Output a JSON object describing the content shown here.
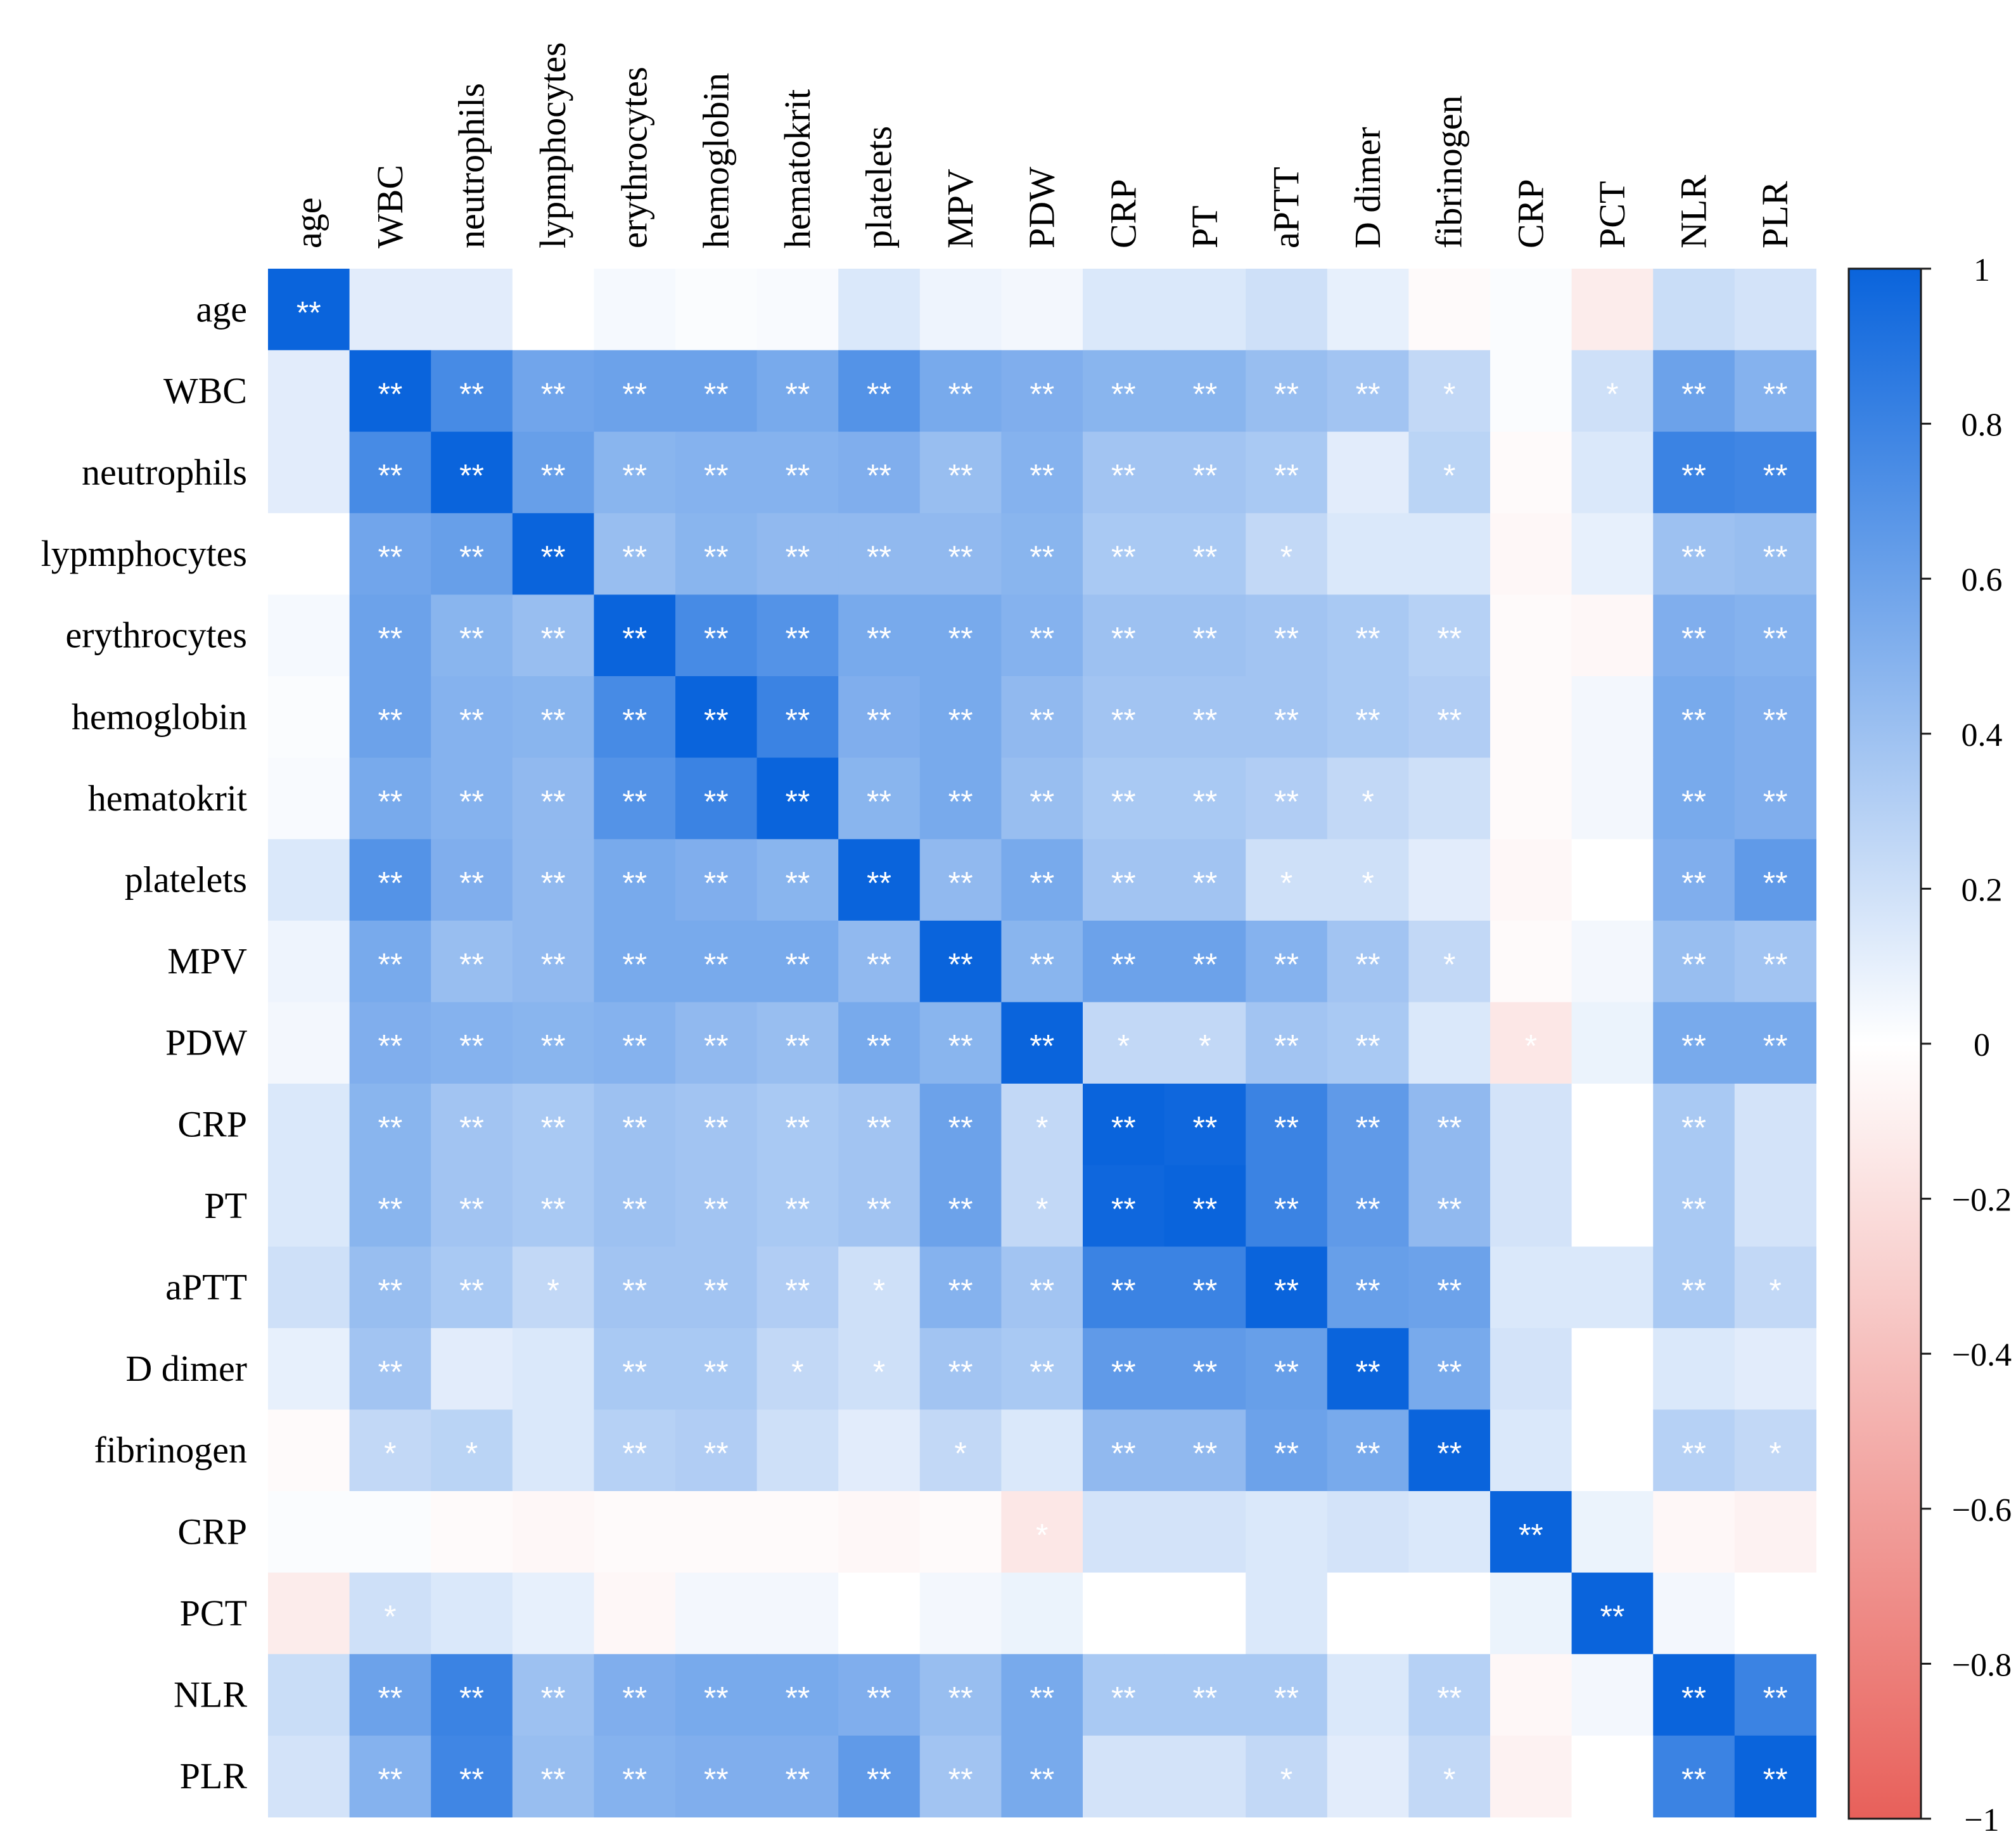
{
  "chart_data": {
    "type": "heatmap",
    "title": "",
    "variables": [
      "age",
      "WBC",
      "neutrophils",
      "lypmphocytes",
      "erythrocytes",
      "hemoglobin",
      "hematokrit",
      "platelets",
      "MPV",
      "PDW",
      "CRP",
      "PT",
      "aPTT",
      "D dimer",
      "fibrinogen",
      "CRP",
      "PCT",
      "NLR",
      "PLR"
    ],
    "matrix": [
      [
        1.0,
        0.12,
        0.12,
        0.0,
        0.04,
        0.02,
        0.03,
        0.15,
        0.07,
        0.05,
        0.15,
        0.15,
        0.2,
        0.1,
        -0.03,
        0.02,
        -0.12,
        0.22,
        0.18
      ],
      [
        0.12,
        1.0,
        0.75,
        0.58,
        0.6,
        0.6,
        0.55,
        0.7,
        0.55,
        0.52,
        0.48,
        0.48,
        0.42,
        0.38,
        0.25,
        0.02,
        0.2,
        0.6,
        0.5
      ],
      [
        0.12,
        0.75,
        1.0,
        0.62,
        0.48,
        0.5,
        0.5,
        0.52,
        0.42,
        0.5,
        0.38,
        0.38,
        0.35,
        0.12,
        0.28,
        -0.03,
        0.15,
        0.8,
        0.78
      ],
      [
        0.0,
        0.58,
        0.62,
        1.0,
        0.42,
        0.48,
        0.45,
        0.45,
        0.45,
        0.48,
        0.35,
        0.35,
        0.25,
        0.15,
        0.15,
        -0.05,
        0.1,
        0.4,
        0.42
      ],
      [
        0.04,
        0.6,
        0.48,
        0.42,
        1.0,
        0.75,
        0.7,
        0.55,
        0.55,
        0.5,
        0.4,
        0.4,
        0.38,
        0.35,
        0.3,
        -0.03,
        -0.05,
        0.52,
        0.5
      ],
      [
        0.02,
        0.6,
        0.5,
        0.48,
        0.75,
        1.0,
        0.8,
        0.52,
        0.55,
        0.45,
        0.38,
        0.38,
        0.38,
        0.35,
        0.32,
        -0.03,
        0.05,
        0.55,
        0.52
      ],
      [
        0.03,
        0.55,
        0.5,
        0.45,
        0.7,
        0.8,
        1.0,
        0.48,
        0.55,
        0.42,
        0.35,
        0.35,
        0.32,
        0.25,
        0.2,
        -0.03,
        0.05,
        0.55,
        0.52
      ],
      [
        0.15,
        0.7,
        0.52,
        0.45,
        0.55,
        0.52,
        0.48,
        1.0,
        0.45,
        0.55,
        0.38,
        0.38,
        0.2,
        0.2,
        0.12,
        -0.05,
        0.0,
        0.52,
        0.65
      ],
      [
        0.07,
        0.55,
        0.42,
        0.45,
        0.55,
        0.55,
        0.55,
        0.45,
        1.0,
        0.48,
        0.6,
        0.6,
        0.5,
        0.38,
        0.25,
        -0.03,
        0.05,
        0.42,
        0.38
      ],
      [
        0.05,
        0.52,
        0.5,
        0.48,
        0.5,
        0.45,
        0.42,
        0.55,
        0.48,
        1.0,
        0.25,
        0.25,
        0.38,
        0.35,
        0.15,
        -0.15,
        0.08,
        0.55,
        0.55
      ],
      [
        0.15,
        0.48,
        0.38,
        0.35,
        0.4,
        0.38,
        0.35,
        0.38,
        0.6,
        0.25,
        1.0,
        0.98,
        0.8,
        0.65,
        0.45,
        0.18,
        0.0,
        0.35,
        0.18
      ],
      [
        0.15,
        0.48,
        0.38,
        0.35,
        0.4,
        0.38,
        0.35,
        0.38,
        0.6,
        0.25,
        0.98,
        1.0,
        0.8,
        0.65,
        0.45,
        0.18,
        0.0,
        0.35,
        0.18
      ],
      [
        0.2,
        0.42,
        0.35,
        0.25,
        0.38,
        0.38,
        0.32,
        0.2,
        0.5,
        0.38,
        0.8,
        0.8,
        1.0,
        0.62,
        0.6,
        0.15,
        0.15,
        0.35,
        0.25
      ],
      [
        0.1,
        0.38,
        0.12,
        0.15,
        0.35,
        0.35,
        0.25,
        0.2,
        0.38,
        0.35,
        0.65,
        0.65,
        0.62,
        1.0,
        0.55,
        0.18,
        0.0,
        0.15,
        0.12
      ],
      [
        -0.03,
        0.25,
        0.28,
        0.15,
        0.3,
        0.32,
        0.2,
        0.12,
        0.25,
        0.15,
        0.45,
        0.45,
        0.6,
        0.55,
        1.0,
        0.15,
        0.0,
        0.3,
        0.25
      ],
      [
        0.02,
        0.02,
        -0.03,
        -0.05,
        -0.03,
        -0.03,
        -0.03,
        -0.05,
        -0.03,
        -0.15,
        0.18,
        0.18,
        0.15,
        0.18,
        0.15,
        1.0,
        0.08,
        -0.05,
        -0.08
      ],
      [
        -0.12,
        0.2,
        0.15,
        0.1,
        -0.05,
        0.05,
        0.05,
        0.0,
        0.05,
        0.08,
        0.0,
        0.0,
        0.15,
        0.0,
        0.0,
        0.08,
        1.0,
        0.05,
        0.0
      ],
      [
        0.22,
        0.6,
        0.8,
        0.4,
        0.52,
        0.55,
        0.55,
        0.52,
        0.42,
        0.55,
        0.35,
        0.35,
        0.35,
        0.15,
        0.3,
        -0.05,
        0.05,
        1.0,
        0.8
      ],
      [
        0.18,
        0.5,
        0.78,
        0.42,
        0.5,
        0.52,
        0.52,
        0.65,
        0.38,
        0.55,
        0.18,
        0.18,
        0.25,
        0.12,
        0.25,
        -0.08,
        0.0,
        0.8,
        1.0
      ]
    ],
    "significance": [
      [
        "**",
        "",
        "",
        "",
        "",
        "",
        "",
        "",
        "",
        "",
        "",
        "",
        "",
        "",
        "",
        "",
        "",
        "",
        ""
      ],
      [
        "",
        "**",
        "**",
        "**",
        "**",
        "**",
        "**",
        "**",
        "**",
        "**",
        "**",
        "**",
        "**",
        "**",
        "*",
        "",
        "*",
        "**",
        "**"
      ],
      [
        "",
        "**",
        "**",
        "**",
        "**",
        "**",
        "**",
        "**",
        "**",
        "**",
        "**",
        "**",
        "**",
        "",
        "*",
        "",
        "",
        "**",
        "**"
      ],
      [
        "",
        "**",
        "**",
        "**",
        "**",
        "**",
        "**",
        "**",
        "**",
        "**",
        "**",
        "**",
        "*",
        "",
        "",
        "",
        "",
        "**",
        "**"
      ],
      [
        "",
        "**",
        "**",
        "**",
        "**",
        "**",
        "**",
        "**",
        "**",
        "**",
        "**",
        "**",
        "**",
        "**",
        "**",
        "",
        "",
        "**",
        "**"
      ],
      [
        "",
        "**",
        "**",
        "**",
        "**",
        "**",
        "**",
        "**",
        "**",
        "**",
        "**",
        "**",
        "**",
        "**",
        "**",
        "",
        "",
        "**",
        "**"
      ],
      [
        "",
        "**",
        "**",
        "**",
        "**",
        "**",
        "**",
        "**",
        "**",
        "**",
        "**",
        "**",
        "**",
        "*",
        "",
        "",
        "",
        "**",
        "**"
      ],
      [
        "",
        "**",
        "**",
        "**",
        "**",
        "**",
        "**",
        "**",
        "**",
        "**",
        "**",
        "**",
        "*",
        "*",
        "",
        "",
        "",
        "**",
        "**"
      ],
      [
        "",
        "**",
        "**",
        "**",
        "**",
        "**",
        "**",
        "**",
        "**",
        "**",
        "**",
        "**",
        "**",
        "**",
        "*",
        "",
        "",
        "**",
        "**"
      ],
      [
        "",
        "**",
        "**",
        "**",
        "**",
        "**",
        "**",
        "**",
        "**",
        "**",
        "*",
        "*",
        "**",
        "**",
        "",
        "*",
        "",
        "**",
        "**"
      ],
      [
        "",
        "**",
        "**",
        "**",
        "**",
        "**",
        "**",
        "**",
        "**",
        "*",
        "**",
        "**",
        "**",
        "**",
        "**",
        "",
        "",
        "**",
        ""
      ],
      [
        "",
        "**",
        "**",
        "**",
        "**",
        "**",
        "**",
        "**",
        "**",
        "*",
        "**",
        "**",
        "**",
        "**",
        "**",
        "",
        "",
        "**",
        ""
      ],
      [
        "",
        "**",
        "**",
        "*",
        "**",
        "**",
        "**",
        "*",
        "**",
        "**",
        "**",
        "**",
        "**",
        "**",
        "**",
        "",
        "",
        "**",
        "*"
      ],
      [
        "",
        "**",
        "",
        "",
        "**",
        "**",
        "*",
        "*",
        "**",
        "**",
        "**",
        "**",
        "**",
        "**",
        "**",
        "",
        "",
        "",
        ""
      ],
      [
        "",
        "*",
        "*",
        "",
        "**",
        "**",
        "",
        "",
        "*",
        "",
        "**",
        "**",
        "**",
        "**",
        "**",
        "",
        "",
        "**",
        "*"
      ],
      [
        "",
        "",
        "",
        "",
        "",
        "",
        "",
        "",
        "",
        "*",
        "",
        "",
        "",
        "",
        "",
        "**",
        "",
        "",
        ""
      ],
      [
        "",
        "*",
        "",
        "",
        "",
        "",
        "",
        "",
        "",
        "",
        "",
        "",
        "",
        "",
        "",
        "",
        "**",
        "",
        ""
      ],
      [
        "",
        "**",
        "**",
        "**",
        "**",
        "**",
        "**",
        "**",
        "**",
        "**",
        "**",
        "**",
        "**",
        "",
        "**",
        "",
        "",
        "**",
        "**"
      ],
      [
        "",
        "**",
        "**",
        "**",
        "**",
        "**",
        "**",
        "**",
        "**",
        "**",
        "",
        "",
        "*",
        "",
        "*",
        "",
        "",
        "**",
        "**"
      ]
    ],
    "colorbar": {
      "min": -1,
      "max": 1,
      "ticks": [
        1,
        0.8,
        0.6,
        0.4,
        0.2,
        0,
        -0.2,
        -0.4,
        -0.6,
        -0.8,
        -1
      ],
      "tick_labels": [
        "1",
        "0.8",
        "0.6",
        "0.4",
        "0.2",
        "0",
        "−0.2",
        "−0.4",
        "−0.6",
        "−0.8",
        "−1"
      ],
      "high_color": "#0a64dc",
      "mid_color": "#ffffff",
      "low_color": "#e8605a"
    }
  }
}
